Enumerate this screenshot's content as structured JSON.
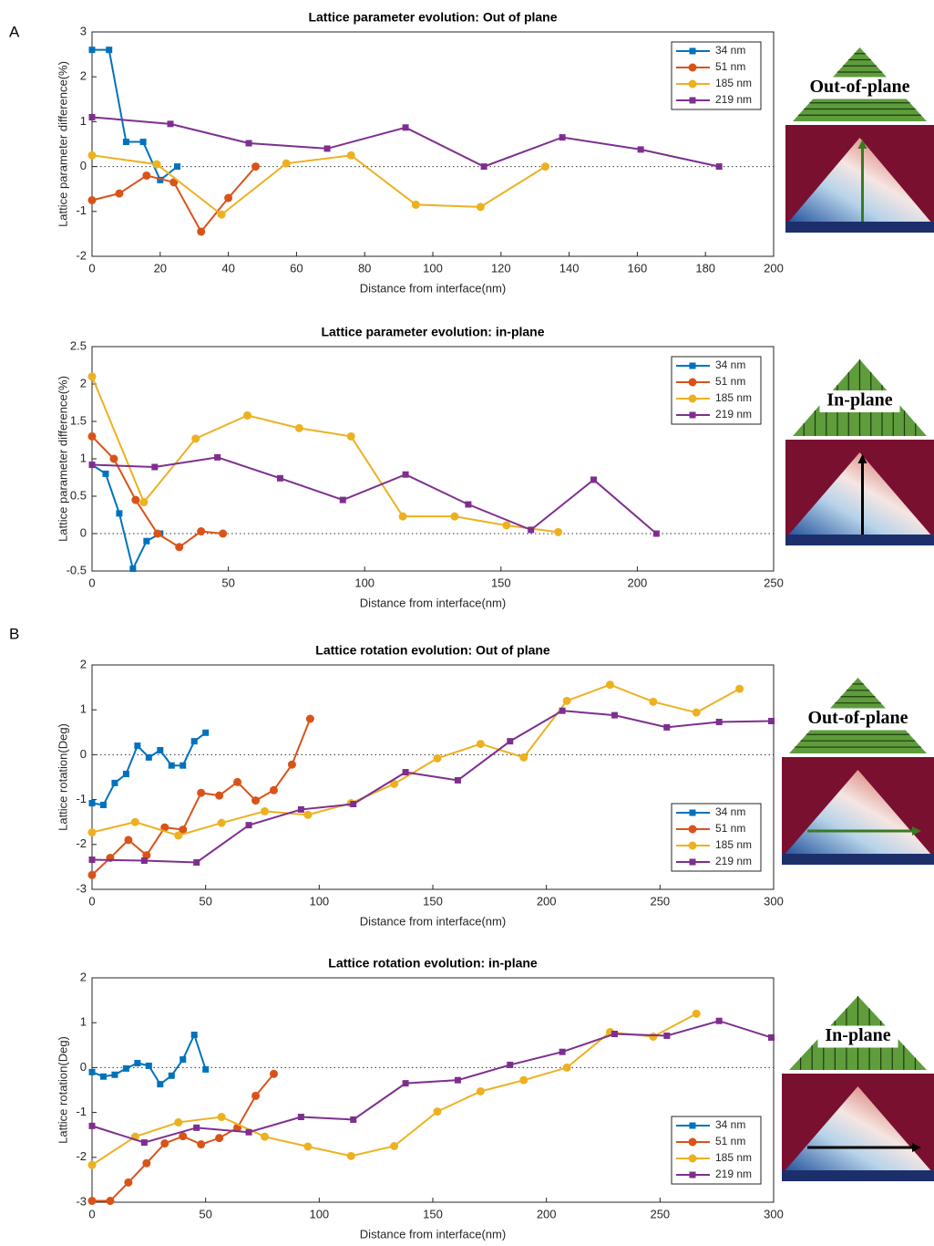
{
  "panel_labels": [
    "A",
    "B"
  ],
  "insets": [
    {
      "label": "Out-of-plane"
    },
    {
      "label": "In-plane"
    },
    {
      "label": "Out-of-plane"
    },
    {
      "label": "In-plane"
    }
  ],
  "chart_data": [
    {
      "type": "line",
      "title": "Lattice parameter evolution: Out of plane",
      "x_label": "Distance from interface(nm)",
      "y_label": "Lattice parameter difference(%)",
      "xlim": [
        0,
        200
      ],
      "xticks": [
        0,
        20,
        40,
        60,
        80,
        100,
        120,
        140,
        160,
        180,
        200
      ],
      "ylim": [
        -2,
        3
      ],
      "yticks": [
        -2,
        -1,
        0,
        1,
        2,
        3
      ],
      "zero_line": true,
      "legend": "upper right",
      "series": [
        {
          "name": "34 nm",
          "color": "#0072BD",
          "marker": "square",
          "x": [
            0,
            5,
            10,
            15,
            20,
            25
          ],
          "values": [
            2.6,
            2.6,
            0.55,
            0.55,
            -0.3,
            0
          ]
        },
        {
          "name": "51 nm",
          "color": "#D95319",
          "marker": "circle",
          "x": [
            0,
            8,
            16,
            24,
            32,
            40,
            48
          ],
          "values": [
            -0.75,
            -0.6,
            -0.2,
            -0.35,
            -1.45,
            -0.7,
            0
          ]
        },
        {
          "name": "185 nm",
          "color": "#EDB120",
          "marker": "circle",
          "x": [
            0,
            19,
            38,
            57,
            76,
            95,
            114,
            133
          ],
          "values": [
            0.25,
            0.05,
            -1.07,
            0.07,
            0.25,
            -0.85,
            -0.9,
            0
          ]
        },
        {
          "name": "219 nm",
          "color": "#7E2F8E",
          "marker": "square",
          "x": [
            0,
            23,
            46,
            69,
            92,
            115,
            138,
            161,
            184
          ],
          "values": [
            1.1,
            0.95,
            0.52,
            0.4,
            0.87,
            0,
            0.65,
            0.38,
            0
          ]
        }
      ]
    },
    {
      "type": "line",
      "title": "Lattice parameter evolution: in-plane",
      "x_label": "Distance from interface(nm)",
      "y_label": "Lattice parameter difference(%)",
      "xlim": [
        0,
        250
      ],
      "xticks": [
        0,
        50,
        100,
        150,
        200,
        250
      ],
      "ylim": [
        -0.5,
        2.5
      ],
      "yticks": [
        -0.5,
        0,
        0.5,
        1,
        1.5,
        2,
        2.5
      ],
      "zero_line": true,
      "legend": "upper right",
      "series": [
        {
          "name": "34 nm",
          "color": "#0072BD",
          "marker": "square",
          "x": [
            0,
            5,
            10,
            15,
            20,
            25
          ],
          "values": [
            0.92,
            0.8,
            0.27,
            -0.47,
            -0.1,
            0
          ]
        },
        {
          "name": "51 nm",
          "color": "#D95319",
          "marker": "circle",
          "x": [
            0,
            8,
            16,
            24,
            32,
            40,
            48
          ],
          "values": [
            1.3,
            1.0,
            0.45,
            0,
            -0.18,
            0.03,
            0
          ]
        },
        {
          "name": "185 nm",
          "color": "#EDB120",
          "marker": "circle",
          "x": [
            0,
            19,
            38,
            57,
            76,
            95,
            114,
            133,
            152,
            171
          ],
          "values": [
            2.1,
            0.42,
            1.27,
            1.58,
            1.41,
            1.3,
            0.23,
            0.23,
            0.11,
            0.02
          ]
        },
        {
          "name": "219 nm",
          "color": "#7E2F8E",
          "marker": "square",
          "x": [
            0,
            23,
            46,
            69,
            92,
            115,
            138,
            161,
            184,
            207
          ],
          "values": [
            0.92,
            0.89,
            1.02,
            0.74,
            0.45,
            0.79,
            0.39,
            0.05,
            0.72,
            0
          ]
        }
      ]
    },
    {
      "type": "line",
      "title": "Lattice rotation evolution: Out of plane",
      "x_label": "Distance from interface(nm)",
      "y_label": "Lattice rotation(Deg)",
      "xlim": [
        0,
        300
      ],
      "xticks": [
        0,
        50,
        100,
        150,
        200,
        250,
        300
      ],
      "ylim": [
        -3,
        2
      ],
      "yticks": [
        -3,
        -2,
        -1,
        0,
        1,
        2
      ],
      "zero_line": true,
      "legend": "lower right",
      "series": [
        {
          "name": "34 nm",
          "color": "#0072BD",
          "marker": "square",
          "x": [
            0,
            5,
            10,
            15,
            20,
            25,
            30,
            35,
            40,
            45,
            50
          ],
          "values": [
            -1.08,
            -1.12,
            -0.63,
            -0.43,
            0.2,
            -0.06,
            0.1,
            -0.24,
            -0.24,
            0.3,
            0.49
          ]
        },
        {
          "name": "51 nm",
          "color": "#D95319",
          "marker": "circle",
          "x": [
            0,
            8,
            16,
            24,
            32,
            40,
            48,
            56,
            64,
            72,
            80,
            88,
            96
          ],
          "values": [
            -2.68,
            -2.3,
            -1.9,
            -2.24,
            -1.62,
            -1.67,
            -0.85,
            -0.91,
            -0.61,
            -1.02,
            -0.79,
            -0.22,
            0.8
          ]
        },
        {
          "name": "185 nm",
          "color": "#EDB120",
          "marker": "circle",
          "x": [
            0,
            19,
            38,
            57,
            76,
            95,
            114,
            133,
            152,
            171,
            190,
            209,
            228,
            247,
            266,
            285
          ],
          "values": [
            -1.73,
            -1.5,
            -1.8,
            -1.52,
            -1.26,
            -1.34,
            -1.08,
            -0.65,
            -0.08,
            0.24,
            -0.06,
            1.2,
            1.56,
            1.18,
            0.94,
            1.47
          ]
        },
        {
          "name": "219 nm",
          "color": "#7E2F8E",
          "marker": "square",
          "x": [
            0,
            23,
            46,
            69,
            92,
            115,
            138,
            161,
            184,
            207,
            230,
            253,
            276,
            299
          ],
          "values": [
            -2.34,
            -2.36,
            -2.4,
            -1.57,
            -1.22,
            -1.1,
            -0.39,
            -0.57,
            0.3,
            0.98,
            0.88,
            0.61,
            0.73,
            0.75
          ]
        }
      ]
    },
    {
      "type": "line",
      "title": "Lattice rotation evolution: in-plane",
      "x_label": "Distance from interface(nm)",
      "y_label": "Lattice rotation(Deg)",
      "xlim": [
        0,
        300
      ],
      "xticks": [
        0,
        50,
        100,
        150,
        200,
        250,
        300
      ],
      "ylim": [
        -3,
        2
      ],
      "yticks": [
        -3,
        -2,
        -1,
        0,
        1,
        2
      ],
      "zero_line": true,
      "legend": "lower right",
      "series": [
        {
          "name": "34 nm",
          "color": "#0072BD",
          "marker": "square",
          "x": [
            0,
            5,
            10,
            15,
            20,
            25,
            30,
            35,
            40,
            45,
            50
          ],
          "values": [
            -0.1,
            -0.2,
            -0.16,
            -0.02,
            0.1,
            0.04,
            -0.37,
            -0.18,
            0.18,
            0.73,
            -0.04
          ]
        },
        {
          "name": "51 nm",
          "color": "#D95319",
          "marker": "circle",
          "x": [
            0,
            8,
            16,
            24,
            32,
            40,
            48,
            56,
            64,
            72,
            80
          ],
          "values": [
            -2.97,
            -2.97,
            -2.56,
            -2.13,
            -1.69,
            -1.53,
            -1.71,
            -1.57,
            -1.34,
            -0.63,
            -0.14
          ]
        },
        {
          "name": "185 nm",
          "color": "#EDB120",
          "marker": "circle",
          "x": [
            0,
            19,
            38,
            57,
            76,
            95,
            114,
            133,
            152,
            171,
            190,
            209,
            228,
            247,
            266
          ],
          "values": [
            -2.17,
            -1.54,
            -1.22,
            -1.1,
            -1.54,
            -1.76,
            -1.97,
            -1.75,
            -0.98,
            -0.53,
            -0.28,
            0,
            0.79,
            0.69,
            1.2
          ]
        },
        {
          "name": "219 nm",
          "color": "#7E2F8E",
          "marker": "square",
          "x": [
            0,
            23,
            46,
            69,
            92,
            115,
            138,
            161,
            184,
            207,
            230,
            253,
            276,
            299
          ],
          "values": [
            -1.3,
            -1.67,
            -1.34,
            -1.44,
            -1.1,
            -1.16,
            -0.35,
            -0.28,
            0.06,
            0.35,
            0.75,
            0.71,
            1.04,
            0.67
          ]
        }
      ]
    }
  ]
}
